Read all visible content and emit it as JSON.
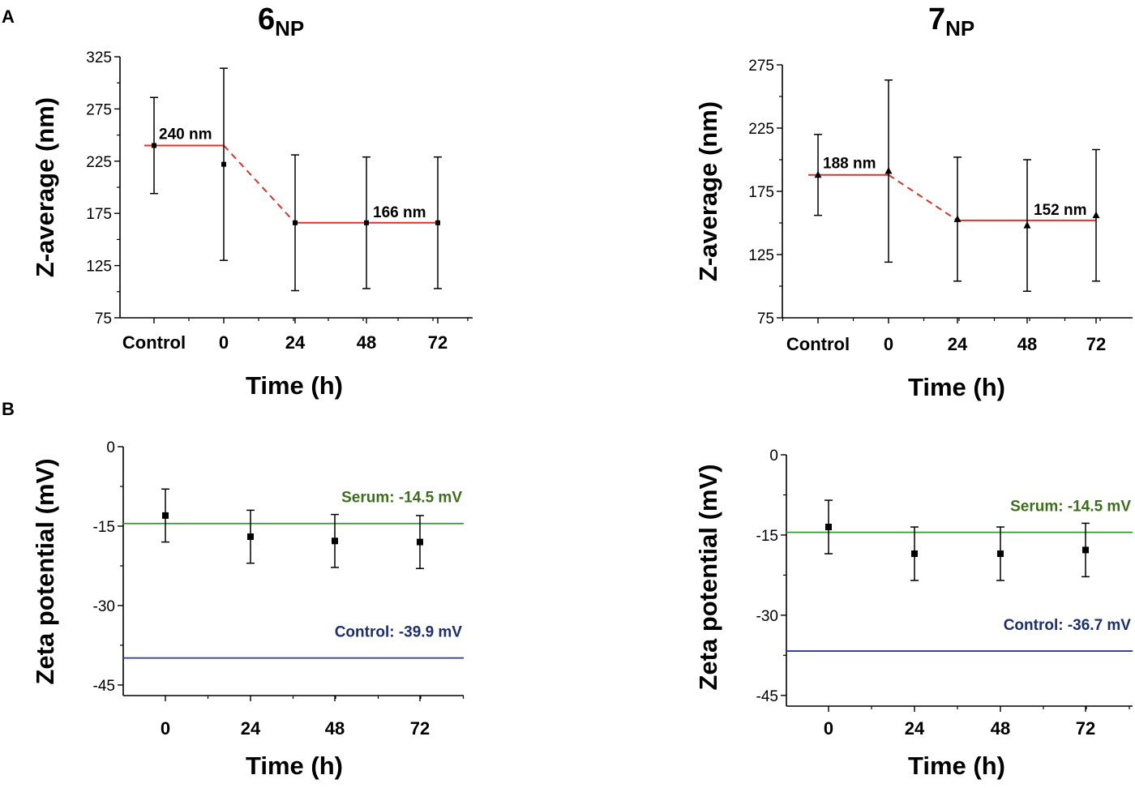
{
  "panel_labels": {
    "a": "A",
    "b": "B"
  },
  "titles": {
    "left": {
      "main": "6",
      "sub": "NP"
    },
    "right": {
      "main": "7",
      "sub": "NP"
    }
  },
  "colors": {
    "fit": "#e0302a",
    "serum": "#2e9e2e",
    "control": "#2b3a8f",
    "serum_text": "#3c6e1e",
    "control_text": "#1e2f6e",
    "axis": "#000000"
  },
  "chart_data": [
    {
      "id": "z6",
      "type": "scatter",
      "title": "6NP",
      "xlabel": "Time (h)",
      "ylabel": "Z-average (nm)",
      "categories": [
        "Control",
        "0",
        "24",
        "48",
        "72"
      ],
      "values": [
        240,
        222,
        166,
        166,
        166
      ],
      "errors": [
        46,
        92,
        65,
        63,
        63
      ],
      "ylim": [
        75,
        325
      ],
      "yticks": [
        75,
        125,
        175,
        225,
        275,
        325
      ],
      "marker": "square",
      "fit": {
        "before": 240,
        "after": 166
      },
      "annotations": [
        "240 nm",
        "166 nm"
      ]
    },
    {
      "id": "z7",
      "type": "scatter",
      "title": "7NP",
      "xlabel": "Time (h)",
      "ylabel": "Z-average (nm)",
      "categories": [
        "Control",
        "0",
        "24",
        "48",
        "72"
      ],
      "values": [
        188,
        191,
        153,
        148,
        156
      ],
      "errors": [
        32,
        72,
        49,
        52,
        52
      ],
      "ylim": [
        75,
        275
      ],
      "yticks": [
        75,
        125,
        175,
        225,
        275
      ],
      "marker": "triangle",
      "fit": {
        "before": 188,
        "after": 152
      },
      "annotations": [
        "188 nm",
        "152 nm"
      ]
    },
    {
      "id": "zeta6",
      "type": "scatter",
      "xlabel": "Time (h)",
      "ylabel": "Zeta potential (mV)",
      "categories": [
        "0",
        "24",
        "48",
        "72"
      ],
      "values": [
        -13,
        -17,
        -17.8,
        -18
      ],
      "errors": [
        5,
        5,
        5,
        5
      ],
      "ylim": [
        -47,
        0
      ],
      "yticks": [
        0,
        -15,
        -30,
        -45
      ],
      "marker": "square",
      "reference_lines": [
        {
          "label": "Serum: -14.5 mV",
          "value": -14.5,
          "kind": "serum"
        },
        {
          "label": "Control: -39.9 mV",
          "value": -39.9,
          "kind": "control"
        }
      ]
    },
    {
      "id": "zeta7",
      "type": "scatter",
      "xlabel": "Time (h)",
      "ylabel": "Zeta potential (mV)",
      "categories": [
        "0",
        "24",
        "48",
        "72"
      ],
      "values": [
        -13.5,
        -18.5,
        -18.5,
        -17.8
      ],
      "errors": [
        5,
        5,
        5,
        5
      ],
      "ylim": [
        -47,
        0
      ],
      "yticks": [
        0,
        -15,
        -30,
        -45
      ],
      "marker": "square",
      "reference_lines": [
        {
          "label": "Serum: -14.5 mV",
          "value": -14.5,
          "kind": "serum"
        },
        {
          "label": "Control: -36.7 mV",
          "value": -36.7,
          "kind": "control"
        }
      ]
    }
  ]
}
